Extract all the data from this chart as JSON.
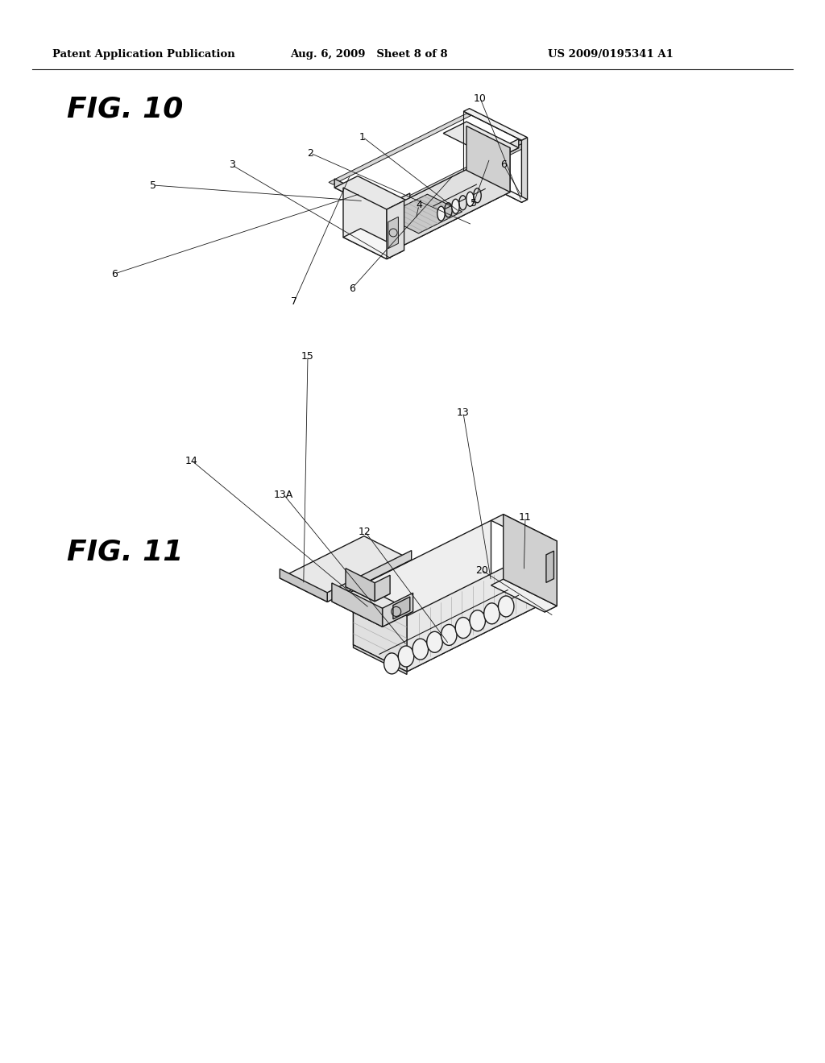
{
  "background_color": "#ffffff",
  "header_left": "Patent Application Publication",
  "header_mid": "Aug. 6, 2009   Sheet 8 of 8",
  "header_right": "US 2009/0195341 A1",
  "header_fontsize": 9.5,
  "fig10_label": "FIG. 10",
  "fig11_label": "FIG. 11",
  "line_color": "#1a1a1a",
  "line_width": 1.0,
  "text_color": "#000000",
  "page_width": 10.24,
  "page_height": 13.2
}
